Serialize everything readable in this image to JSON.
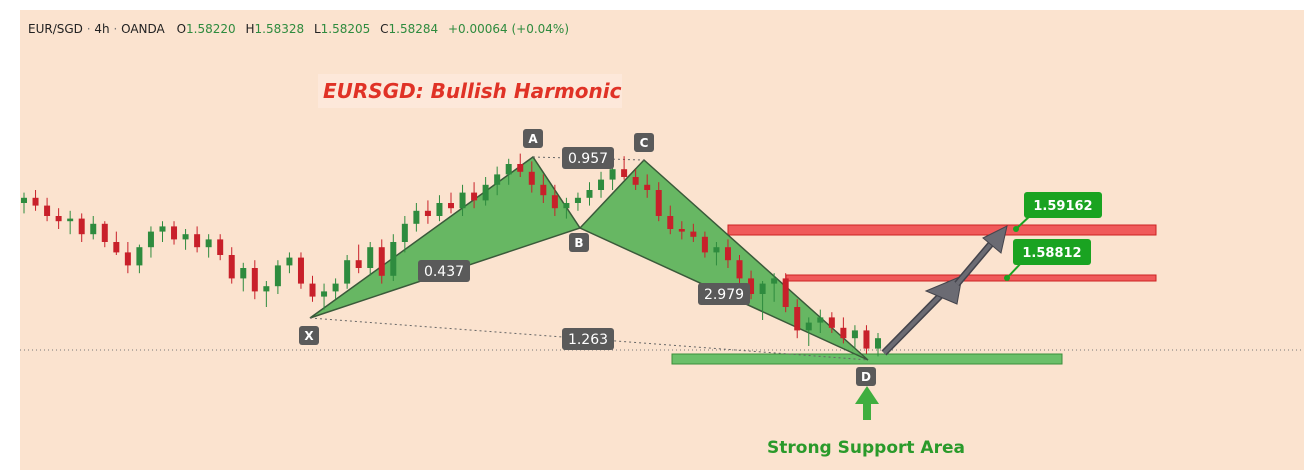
{
  "header": {
    "symbol": "EUR/SGD",
    "timeframe": "4h",
    "exchange": "OANDA",
    "open_label": "O",
    "open": "1.58220",
    "high_label": "H",
    "high": "1.58328",
    "low_label": "L",
    "low": "1.58205",
    "close_label": "C",
    "close": "1.58284",
    "change": "+0.00064 (+0.04%)"
  },
  "annotations": {
    "title": "EURSGD: Bullish Harmonic",
    "support_caption": "Strong Support Area",
    "points": [
      "X",
      "A",
      "B",
      "C",
      "D"
    ],
    "ratios": {
      "xb": "0.437",
      "ac": "0.957",
      "bd": "2.979",
      "xd": "1.263"
    },
    "targets": [
      "1.59162",
      "1.58812"
    ]
  },
  "colors": {
    "background": "#fbe3cf",
    "up": "#2e8b3e",
    "down": "#c8202a",
    "pattern_fill": "#4caf50",
    "resistance": "#f05a5a",
    "support": "#6abf69",
    "label_bg": "#5a5a5a",
    "target_bg": "#1aa321",
    "title_color": "#e03226",
    "caption_color": "#2a9a2a",
    "arrow": "#6b6b73"
  },
  "chart_data": {
    "type": "candlestick",
    "title": "EURSGD: Bullish Harmonic",
    "pattern": "Bullish Harmonic (XABCD)",
    "approx_candles": [
      [
        1.588,
        1.5888,
        1.5872,
        1.5884
      ],
      [
        1.5884,
        1.589,
        1.5874,
        1.5878
      ],
      [
        1.5878,
        1.5884,
        1.5866,
        1.587
      ],
      [
        1.587,
        1.5876,
        1.586,
        1.5866
      ],
      [
        1.5866,
        1.5874,
        1.5856,
        1.5868
      ],
      [
        1.5868,
        1.5872,
        1.585,
        1.5856
      ],
      [
        1.5856,
        1.587,
        1.5852,
        1.5864
      ],
      [
        1.5864,
        1.5866,
        1.5846,
        1.585
      ],
      [
        1.585,
        1.5858,
        1.584,
        1.5842
      ],
      [
        1.5842,
        1.585,
        1.5826,
        1.5832
      ],
      [
        1.5832,
        1.5848,
        1.5826,
        1.5846
      ],
      [
        1.5846,
        1.5862,
        1.5838,
        1.5858
      ],
      [
        1.5858,
        1.5866,
        1.585,
        1.5862
      ],
      [
        1.5862,
        1.5866,
        1.5848,
        1.5852
      ],
      [
        1.5852,
        1.586,
        1.5844,
        1.5856
      ],
      [
        1.5856,
        1.5862,
        1.5842,
        1.5846
      ],
      [
        1.5846,
        1.5856,
        1.5838,
        1.5852
      ],
      [
        1.5852,
        1.5856,
        1.5836,
        1.584
      ],
      [
        1.584,
        1.5846,
        1.5818,
        1.5822
      ],
      [
        1.5822,
        1.5834,
        1.5812,
        1.583
      ],
      [
        1.583,
        1.5836,
        1.5806,
        1.5812
      ],
      [
        1.5812,
        1.582,
        1.58,
        1.5816
      ],
      [
        1.5816,
        1.5836,
        1.581,
        1.5832
      ],
      [
        1.5832,
        1.5842,
        1.5826,
        1.5838
      ],
      [
        1.5838,
        1.5842,
        1.5814,
        1.5818
      ],
      [
        1.5818,
        1.5824,
        1.5804,
        1.5808
      ],
      [
        1.5808,
        1.5818,
        1.5798,
        1.5812
      ],
      [
        1.5812,
        1.5822,
        1.5806,
        1.5818
      ],
      [
        1.5818,
        1.584,
        1.5814,
        1.5836
      ],
      [
        1.5836,
        1.5848,
        1.5826,
        1.583
      ],
      [
        1.583,
        1.585,
        1.5824,
        1.5846
      ],
      [
        1.5846,
        1.5852,
        1.5818,
        1.5824
      ],
      [
        1.5824,
        1.5856,
        1.582,
        1.585
      ],
      [
        1.585,
        1.587,
        1.5842,
        1.5864
      ],
      [
        1.5864,
        1.588,
        1.5858,
        1.5874
      ],
      [
        1.5874,
        1.5882,
        1.5864,
        1.587
      ],
      [
        1.587,
        1.5886,
        1.5866,
        1.588
      ],
      [
        1.588,
        1.5888,
        1.5872,
        1.5876
      ],
      [
        1.5876,
        1.5894,
        1.587,
        1.5888
      ],
      [
        1.5888,
        1.5896,
        1.5876,
        1.5882
      ],
      [
        1.5882,
        1.59,
        1.5878,
        1.5894
      ],
      [
        1.5894,
        1.5908,
        1.5886,
        1.5902
      ],
      [
        1.5902,
        1.5914,
        1.5894,
        1.591
      ],
      [
        1.591,
        1.5918,
        1.59,
        1.5904
      ],
      [
        1.5904,
        1.5912,
        1.5888,
        1.5894
      ],
      [
        1.5894,
        1.5902,
        1.588,
        1.5886
      ],
      [
        1.5886,
        1.5894,
        1.587,
        1.5876
      ],
      [
        1.5876,
        1.5884,
        1.5868,
        1.588
      ],
      [
        1.588,
        1.5888,
        1.5874,
        1.5884
      ],
      [
        1.5884,
        1.5896,
        1.5878,
        1.589
      ],
      [
        1.589,
        1.5904,
        1.5884,
        1.5898
      ],
      [
        1.5898,
        1.5912,
        1.589,
        1.5906
      ],
      [
        1.5906,
        1.5916,
        1.5898,
        1.59
      ],
      [
        1.59,
        1.5906,
        1.589,
        1.5894
      ],
      [
        1.5894,
        1.5902,
        1.5884,
        1.589
      ],
      [
        1.589,
        1.5896,
        1.5866,
        1.587
      ],
      [
        1.587,
        1.5878,
        1.5856,
        1.586
      ],
      [
        1.586,
        1.5866,
        1.5852,
        1.5858
      ],
      [
        1.5858,
        1.5864,
        1.585,
        1.5854
      ],
      [
        1.5854,
        1.5858,
        1.5838,
        1.5842
      ],
      [
        1.5842,
        1.585,
        1.5832,
        1.5846
      ],
      [
        1.5846,
        1.5852,
        1.583,
        1.5836
      ],
      [
        1.5836,
        1.584,
        1.5818,
        1.5822
      ],
      [
        1.5822,
        1.5828,
        1.5806,
        1.581
      ],
      [
        1.581,
        1.582,
        1.579,
        1.5818
      ],
      [
        1.5818,
        1.5826,
        1.5804,
        1.5822
      ],
      [
        1.5822,
        1.5826,
        1.5796,
        1.58
      ],
      [
        1.58,
        1.5806,
        1.5776,
        1.5782
      ],
      [
        1.5782,
        1.5792,
        1.577,
        1.5788
      ],
      [
        1.5788,
        1.5798,
        1.578,
        1.5792
      ],
      [
        1.5792,
        1.5796,
        1.578,
        1.5784
      ],
      [
        1.5784,
        1.5792,
        1.5772,
        1.5776
      ],
      [
        1.5776,
        1.5786,
        1.5768,
        1.5782
      ],
      [
        1.5782,
        1.5786,
        1.5764,
        1.5768
      ],
      [
        1.5768,
        1.578,
        1.5762,
        1.5776
      ]
    ],
    "levels": {
      "target_1": 1.59162,
      "target_2": 1.58812
    },
    "ylim": [
      1.575,
      1.594
    ]
  }
}
